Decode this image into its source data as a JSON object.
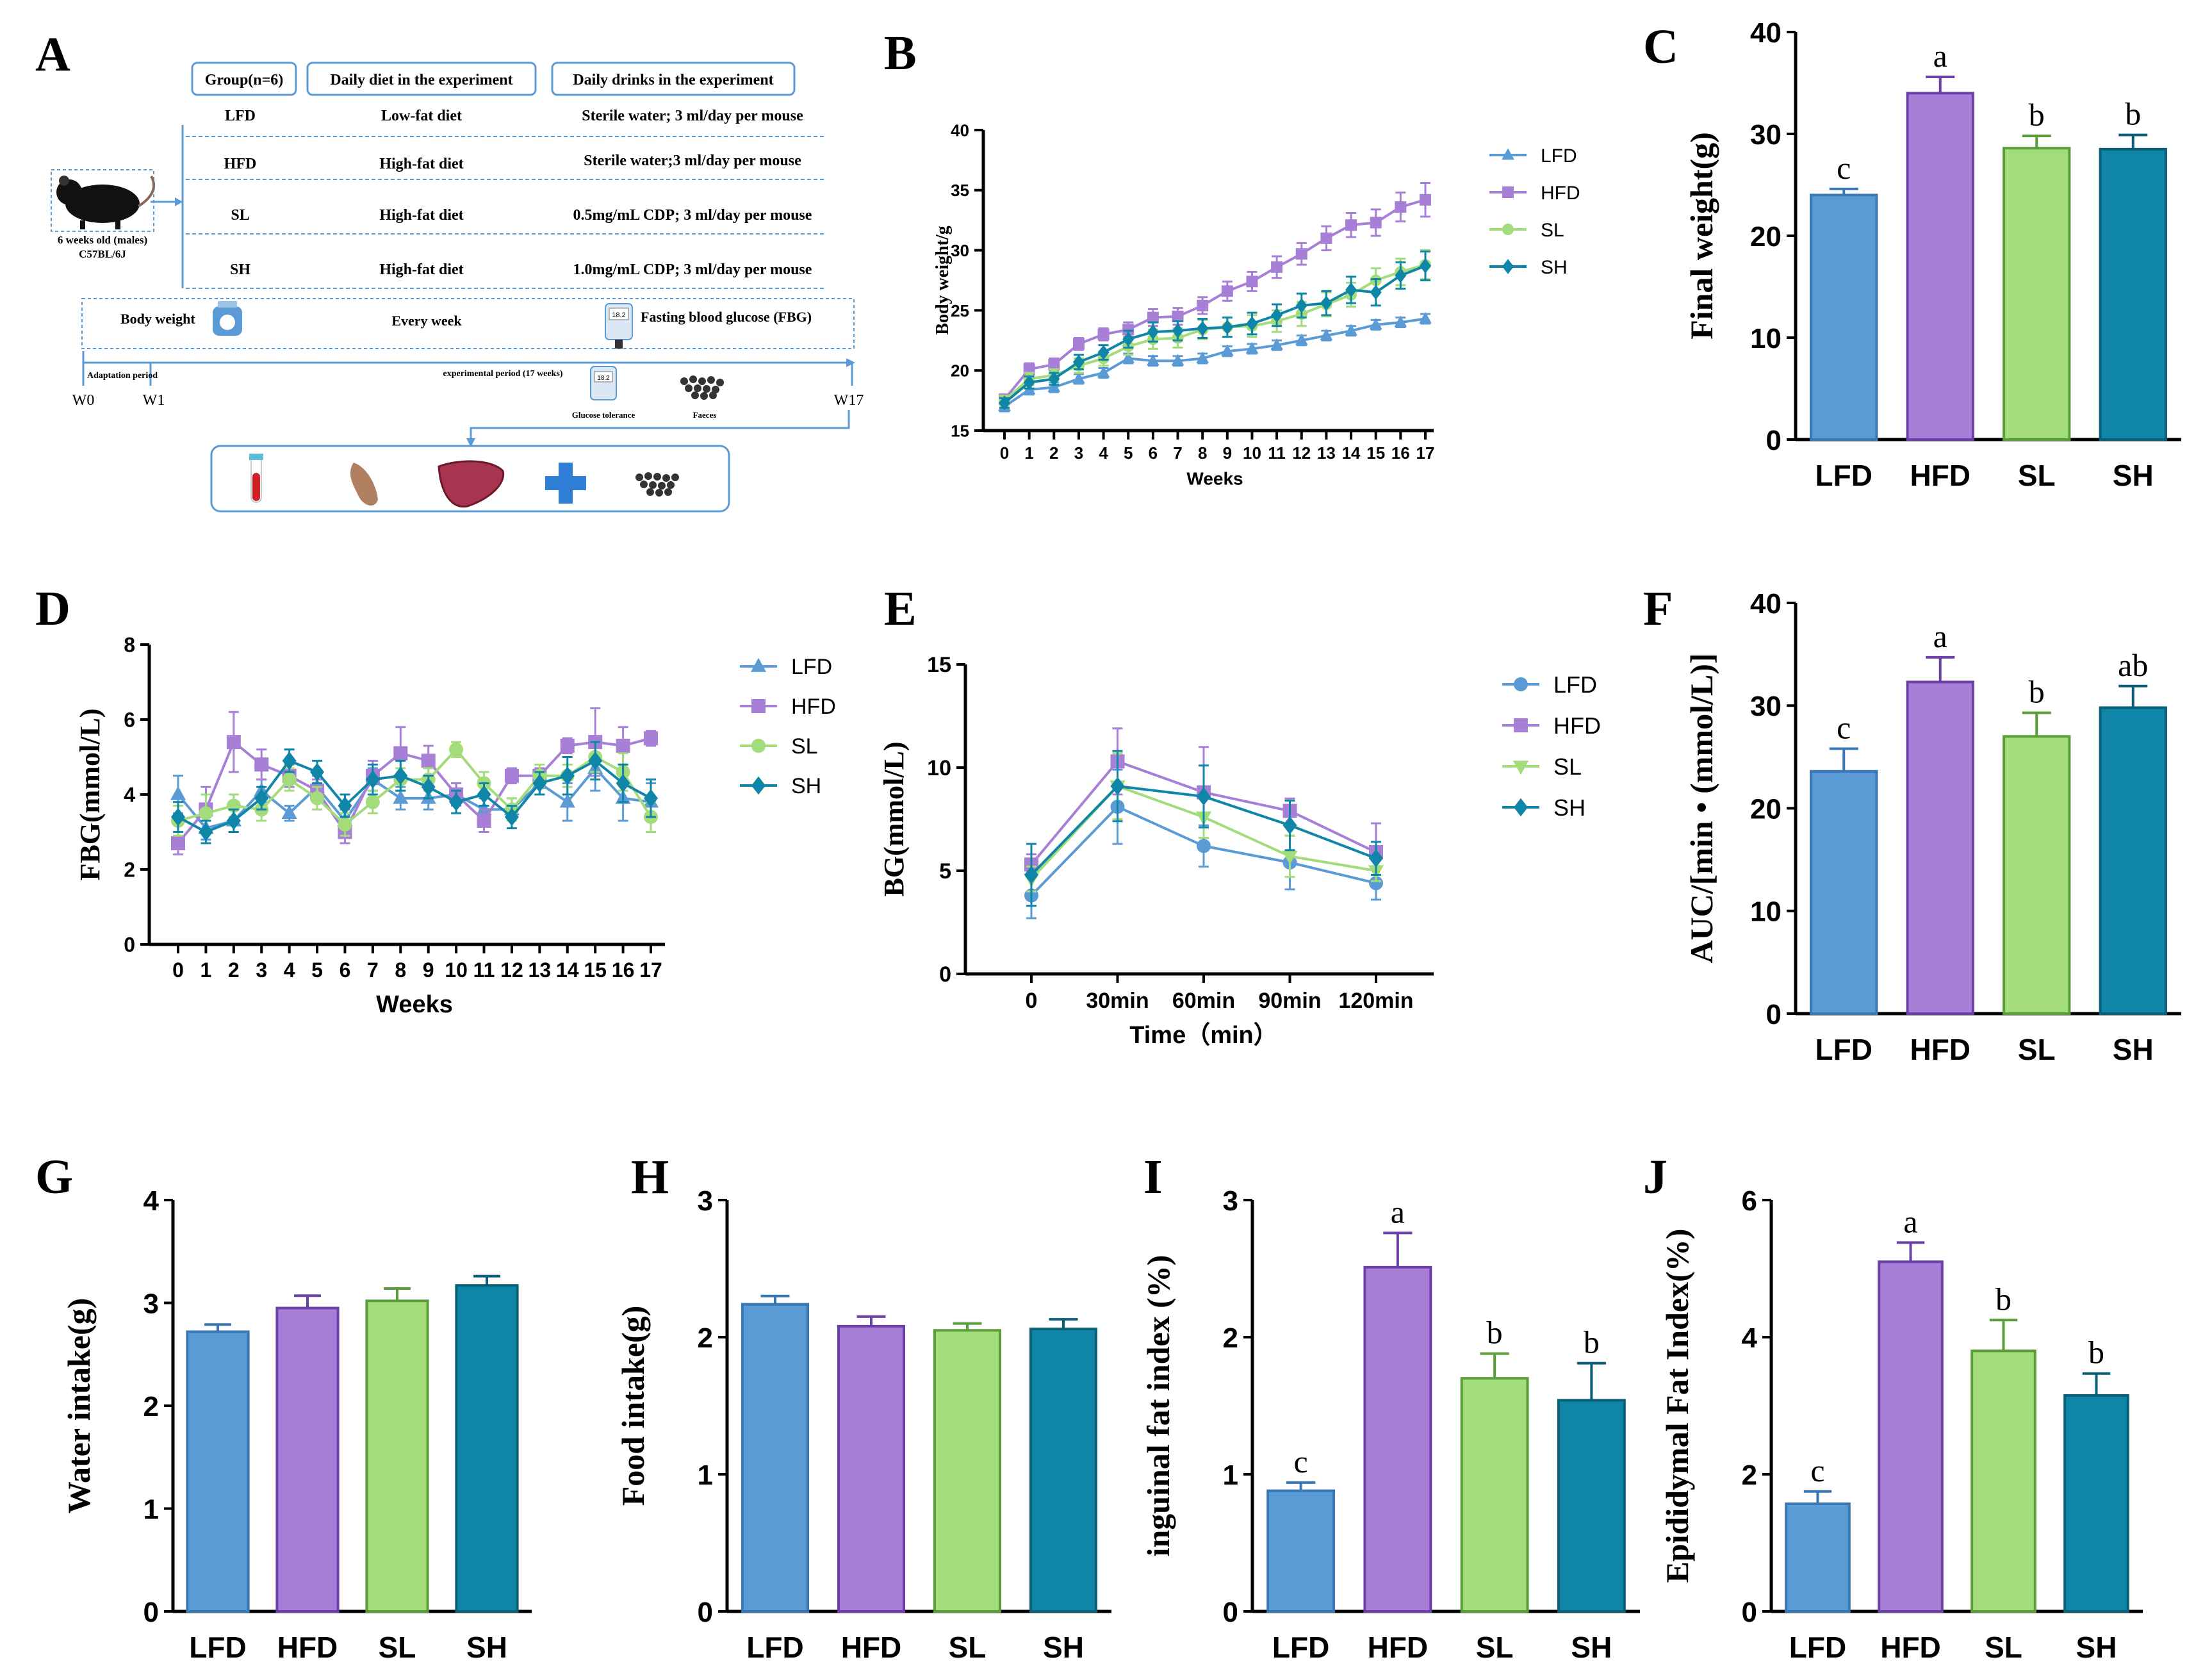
{
  "colors": {
    "LFD": "#5b9bd5",
    "HFD": "#a77fd6",
    "SL": "#a3dc7a",
    "SH": "#0f86a8"
  },
  "diagram": {
    "label": "A",
    "headers": [
      "Group(n=6)",
      "Daily diet in the experiment",
      "Daily drinks in the experiment"
    ],
    "rows": [
      [
        "LFD",
        "Low-fat diet",
        "Sterile water; 3 ml/day per mouse"
      ],
      [
        "HFD",
        "High-fat diet",
        "Sterile water;3 ml/day per mouse"
      ],
      [
        "SL",
        "High-fat diet",
        "0.5mg/mL CDP; 3 ml/day per mouse"
      ],
      [
        "SH",
        "High-fat diet",
        "1.0mg/mL CDP; 3 ml/day per mouse"
      ]
    ],
    "mouse_caption": [
      "6 weeks old (males)",
      "C57BL/6J"
    ],
    "bw_label": "Body weight",
    "every_week": "Every week",
    "fbg_label": "Fasting blood glucose (FBG)",
    "adaptation": "Adaptation period",
    "exp_period": "experimental period (17 weeks)",
    "w0": "W0",
    "w1": "W1",
    "w17": "W17",
    "glucose_tol": "Glucose tolerance",
    "faeces": "Faeces",
    "meter_text": "18.2"
  },
  "chart_data": [
    {
      "id": "B",
      "type": "line",
      "xlabel": "Weeks",
      "ylabel": "Body weight/g",
      "ylim": [
        15,
        40
      ],
      "yticks": [
        15,
        20,
        25,
        30,
        35,
        40
      ],
      "x": [
        0,
        1,
        2,
        3,
        4,
        5,
        6,
        7,
        8,
        9,
        10,
        11,
        12,
        13,
        14,
        15,
        16,
        17
      ],
      "series": [
        {
          "name": "LFD",
          "marker": "triangle",
          "values": [
            17.0,
            18.4,
            18.6,
            19.3,
            19.8,
            21.0,
            20.8,
            20.8,
            21.0,
            21.6,
            21.8,
            22.1,
            22.5,
            22.9,
            23.3,
            23.8,
            24.0,
            24.3
          ],
          "err": [
            0.4,
            0.4,
            0.4,
            0.4,
            0.4,
            0.4,
            0.4,
            0.4,
            0.4,
            0.4,
            0.4,
            0.4,
            0.4,
            0.4,
            0.4,
            0.4,
            0.4,
            0.4
          ]
        },
        {
          "name": "HFD",
          "marker": "square",
          "values": [
            17.6,
            20.1,
            20.5,
            22.2,
            23.0,
            23.4,
            24.4,
            24.5,
            25.4,
            26.6,
            27.4,
            28.6,
            29.7,
            31.0,
            32.1,
            32.3,
            33.6,
            34.2
          ],
          "err": [
            0.4,
            0.5,
            0.5,
            0.5,
            0.5,
            0.6,
            0.7,
            0.7,
            0.7,
            0.8,
            0.8,
            0.9,
            0.9,
            1.0,
            1.0,
            1.1,
            1.2,
            1.4
          ]
        },
        {
          "name": "SL",
          "marker": "circle",
          "values": [
            17.5,
            19.3,
            19.6,
            20.4,
            21.0,
            22.0,
            22.6,
            22.7,
            23.4,
            23.6,
            23.7,
            24.1,
            24.7,
            25.5,
            26.3,
            27.5,
            28.2,
            28.8
          ],
          "err": [
            0.4,
            0.5,
            0.5,
            0.6,
            0.6,
            0.7,
            0.8,
            0.8,
            0.8,
            0.8,
            0.9,
            0.9,
            1.0,
            1.0,
            1.0,
            1.0,
            1.1,
            1.2
          ]
        },
        {
          "name": "SH",
          "marker": "diamond",
          "values": [
            17.3,
            19.0,
            19.3,
            20.7,
            21.5,
            22.6,
            23.2,
            23.3,
            23.5,
            23.6,
            23.9,
            24.6,
            25.4,
            25.6,
            26.7,
            26.5,
            27.9,
            28.7
          ],
          "err": [
            0.4,
            0.5,
            0.5,
            0.6,
            0.6,
            0.7,
            0.8,
            0.8,
            0.8,
            0.8,
            0.9,
            0.9,
            1.0,
            1.0,
            1.1,
            1.1,
            1.1,
            1.2
          ]
        }
      ]
    },
    {
      "id": "C",
      "type": "bar",
      "categories": [
        "LFD",
        "HFD",
        "SL",
        "SH"
      ],
      "values": [
        24.0,
        34.0,
        28.6,
        28.5
      ],
      "err": [
        0.6,
        1.6,
        1.2,
        1.4
      ],
      "letters": [
        "c",
        "a",
        "b",
        "b"
      ],
      "ylabel": "Final weight(g)",
      "ylim": [
        0,
        40
      ],
      "yticks": [
        0,
        10,
        20,
        30,
        40
      ]
    },
    {
      "id": "D",
      "type": "line",
      "xlabel": "Weeks",
      "ylabel": "FBG(mmol/L)",
      "ylim": [
        0,
        8
      ],
      "yticks": [
        0,
        2,
        4,
        6,
        8
      ],
      "x": [
        0,
        1,
        2,
        3,
        4,
        5,
        6,
        7,
        8,
        9,
        10,
        11,
        12,
        13,
        14,
        15,
        16,
        17
      ],
      "series": [
        {
          "name": "LFD",
          "marker": "triangle",
          "values": [
            4.0,
            3.1,
            3.3,
            4.1,
            3.5,
            4.2,
            3.3,
            4.4,
            3.9,
            3.9,
            4.0,
            3.6,
            3.6,
            4.3,
            3.8,
            4.7,
            3.9,
            3.8
          ],
          "err": [
            0.5,
            0.3,
            0.3,
            0.3,
            0.2,
            0.3,
            0.3,
            0.3,
            0.3,
            0.3,
            0.3,
            0.3,
            0.3,
            0.3,
            0.5,
            0.6,
            0.6,
            0.5
          ]
        },
        {
          "name": "HFD",
          "marker": "square",
          "values": [
            2.7,
            3.6,
            5.4,
            4.8,
            4.5,
            4.1,
            3.0,
            4.5,
            5.1,
            4.9,
            4.0,
            3.3,
            4.5,
            4.5,
            5.3,
            5.4,
            5.3,
            5.5
          ],
          "err": [
            0.3,
            0.6,
            0.8,
            0.4,
            0.3,
            0.3,
            0.3,
            0.4,
            0.7,
            0.4,
            0.3,
            0.3,
            0.2,
            0.2,
            0.2,
            0.9,
            0.5,
            0.2
          ]
        },
        {
          "name": "SL",
          "marker": "circle",
          "values": [
            3.3,
            3.5,
            3.7,
            3.6,
            4.4,
            3.9,
            3.2,
            3.8,
            4.4,
            4.4,
            5.2,
            4.3,
            3.6,
            4.5,
            4.5,
            5.0,
            4.6,
            3.4
          ],
          "err": [
            0.4,
            0.5,
            0.3,
            0.3,
            0.3,
            0.3,
            0.3,
            0.3,
            0.3,
            0.3,
            0.2,
            0.3,
            0.3,
            0.3,
            0.3,
            0.4,
            0.5,
            0.4
          ]
        },
        {
          "name": "SH",
          "marker": "diamond",
          "values": [
            3.4,
            3.0,
            3.3,
            3.9,
            4.9,
            4.6,
            3.7,
            4.4,
            4.5,
            4.2,
            3.8,
            4.0,
            3.4,
            4.3,
            4.5,
            4.9,
            4.3,
            3.9
          ],
          "err": [
            0.4,
            0.3,
            0.3,
            0.3,
            0.3,
            0.3,
            0.3,
            0.4,
            0.4,
            0.3,
            0.3,
            0.3,
            0.3,
            0.3,
            0.5,
            0.5,
            0.5,
            0.5
          ]
        }
      ]
    },
    {
      "id": "E",
      "type": "line",
      "xlabel": "Time（min）",
      "ylabel": "BG(mmol/L)",
      "ylim": [
        0,
        15
      ],
      "yticks": [
        0,
        5,
        10,
        15
      ],
      "categories": [
        "0",
        "30min",
        "60min",
        "90min",
        "120min"
      ],
      "series": [
        {
          "name": "LFD",
          "marker": "circle",
          "values": [
            3.8,
            8.1,
            6.2,
            5.4,
            4.4
          ],
          "err": [
            1.1,
            1.8,
            1.0,
            1.3,
            0.8
          ]
        },
        {
          "name": "HFD",
          "marker": "square",
          "values": [
            5.3,
            10.3,
            8.8,
            7.9,
            5.9
          ],
          "err": [
            0.5,
            1.6,
            2.2,
            0.6,
            1.4
          ]
        },
        {
          "name": "SL",
          "marker": "down-triangle",
          "values": [
            4.6,
            9.1,
            7.6,
            5.7,
            5.0
          ],
          "err": [
            0.6,
            1.6,
            1.0,
            1.0,
            0.5
          ]
        },
        {
          "name": "SH",
          "marker": "diamond",
          "values": [
            4.8,
            9.1,
            8.6,
            7.2,
            5.6
          ],
          "err": [
            1.5,
            1.7,
            1.5,
            1.2,
            0.8
          ]
        }
      ]
    },
    {
      "id": "F",
      "type": "bar",
      "categories": [
        "LFD",
        "HFD",
        "SL",
        "SH"
      ],
      "values": [
        23.6,
        32.3,
        27.0,
        29.8
      ],
      "err": [
        2.2,
        2.4,
        2.3,
        2.1
      ],
      "letters": [
        "c",
        "a",
        "b",
        "ab"
      ],
      "ylabel": "AUC/[min • (mmol/L)]",
      "ylim": [
        0,
        40
      ],
      "yticks": [
        0,
        10,
        20,
        30,
        40
      ]
    },
    {
      "id": "G",
      "type": "bar",
      "categories": [
        "LFD",
        "HFD",
        "SL",
        "SH"
      ],
      "values": [
        2.72,
        2.95,
        3.02,
        3.17
      ],
      "err": [
        0.07,
        0.12,
        0.12,
        0.09
      ],
      "letters": [
        "",
        "",
        "",
        ""
      ],
      "ylabel": "Water intake(g)",
      "ylim": [
        0,
        4
      ],
      "yticks": [
        0,
        1,
        2,
        3,
        4
      ]
    },
    {
      "id": "H",
      "type": "bar",
      "categories": [
        "LFD",
        "HFD",
        "SL",
        "SH"
      ],
      "values": [
        2.24,
        2.08,
        2.05,
        2.06
      ],
      "err": [
        0.06,
        0.07,
        0.05,
        0.07
      ],
      "letters": [
        "",
        "",
        "",
        ""
      ],
      "ylabel": "Food intake(g)",
      "ylim": [
        0,
        3
      ],
      "yticks": [
        0,
        1,
        2,
        3
      ]
    },
    {
      "id": "I",
      "type": "bar",
      "categories": [
        "LFD",
        "HFD",
        "SL",
        "SH"
      ],
      "values": [
        0.88,
        2.51,
        1.7,
        1.54
      ],
      "err": [
        0.06,
        0.25,
        0.18,
        0.27
      ],
      "letters": [
        "c",
        "a",
        "b",
        "b"
      ],
      "ylabel": "inguinal fat index (%)",
      "ylim": [
        0,
        3
      ],
      "yticks": [
        0,
        1,
        2,
        3
      ]
    },
    {
      "id": "J",
      "type": "bar",
      "categories": [
        "LFD",
        "HFD",
        "SL",
        "SH"
      ],
      "values": [
        1.57,
        5.1,
        3.8,
        3.15
      ],
      "err": [
        0.18,
        0.28,
        0.45,
        0.32
      ],
      "letters": [
        "c",
        "a",
        "b",
        "b"
      ],
      "ylabel": "Epididymal Fat Index(%)",
      "ylim": [
        0,
        6
      ],
      "yticks": [
        0,
        2,
        4,
        6
      ]
    }
  ]
}
